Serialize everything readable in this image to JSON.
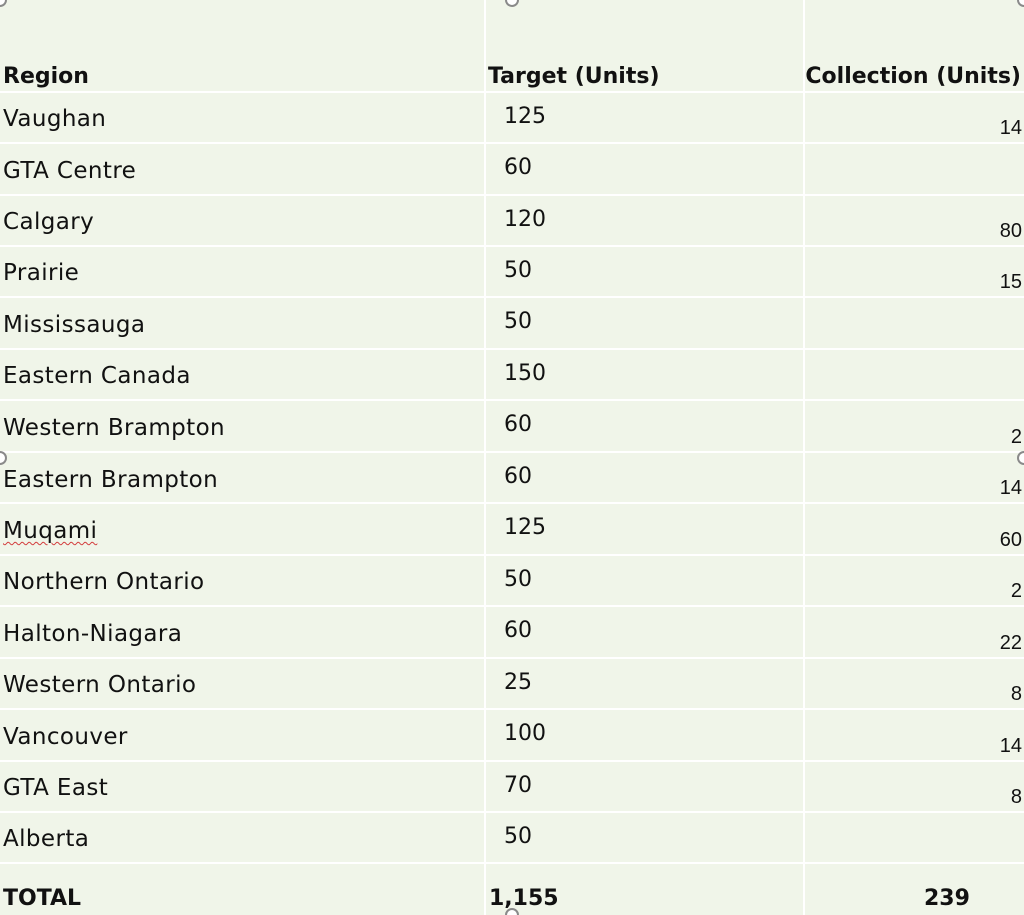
{
  "table": {
    "headers": {
      "region": "Region",
      "target": "Target (Units)",
      "collection": "Collection (Units)"
    },
    "rows": [
      {
        "region": "Vaughan",
        "target": "125",
        "collection": "14"
      },
      {
        "region": "GTA Centre",
        "target": "60",
        "collection": ""
      },
      {
        "region": "Calgary",
        "target": "120",
        "collection": "80"
      },
      {
        "region": "Prairie",
        "target": "50",
        "collection": "15"
      },
      {
        "region": "Mississauga",
        "target": "50",
        "collection": ""
      },
      {
        "region": "Eastern Canada",
        "target": "150",
        "collection": ""
      },
      {
        "region": "Western Brampton",
        "target": "60",
        "collection": "2"
      },
      {
        "region": "Eastern Brampton",
        "target": "60",
        "collection": "14"
      },
      {
        "region": "Muqami",
        "target": "125",
        "collection": "60"
      },
      {
        "region": "Northern Ontario",
        "target": "50",
        "collection": "2"
      },
      {
        "region": "Halton-Niagara",
        "target": "60",
        "collection": "22"
      },
      {
        "region": "Western Ontario",
        "target": "25",
        "collection": "8"
      },
      {
        "region": "Vancouver",
        "target": "100",
        "collection": "14"
      },
      {
        "region": "GTA East",
        "target": "70",
        "collection": "8"
      },
      {
        "region": "Alberta",
        "target": "50",
        "collection": ""
      }
    ],
    "total": {
      "label": "TOTAL",
      "target": "1,155",
      "collection": "239"
    }
  },
  "spellcheck_flagged": [
    "Muqami"
  ]
}
